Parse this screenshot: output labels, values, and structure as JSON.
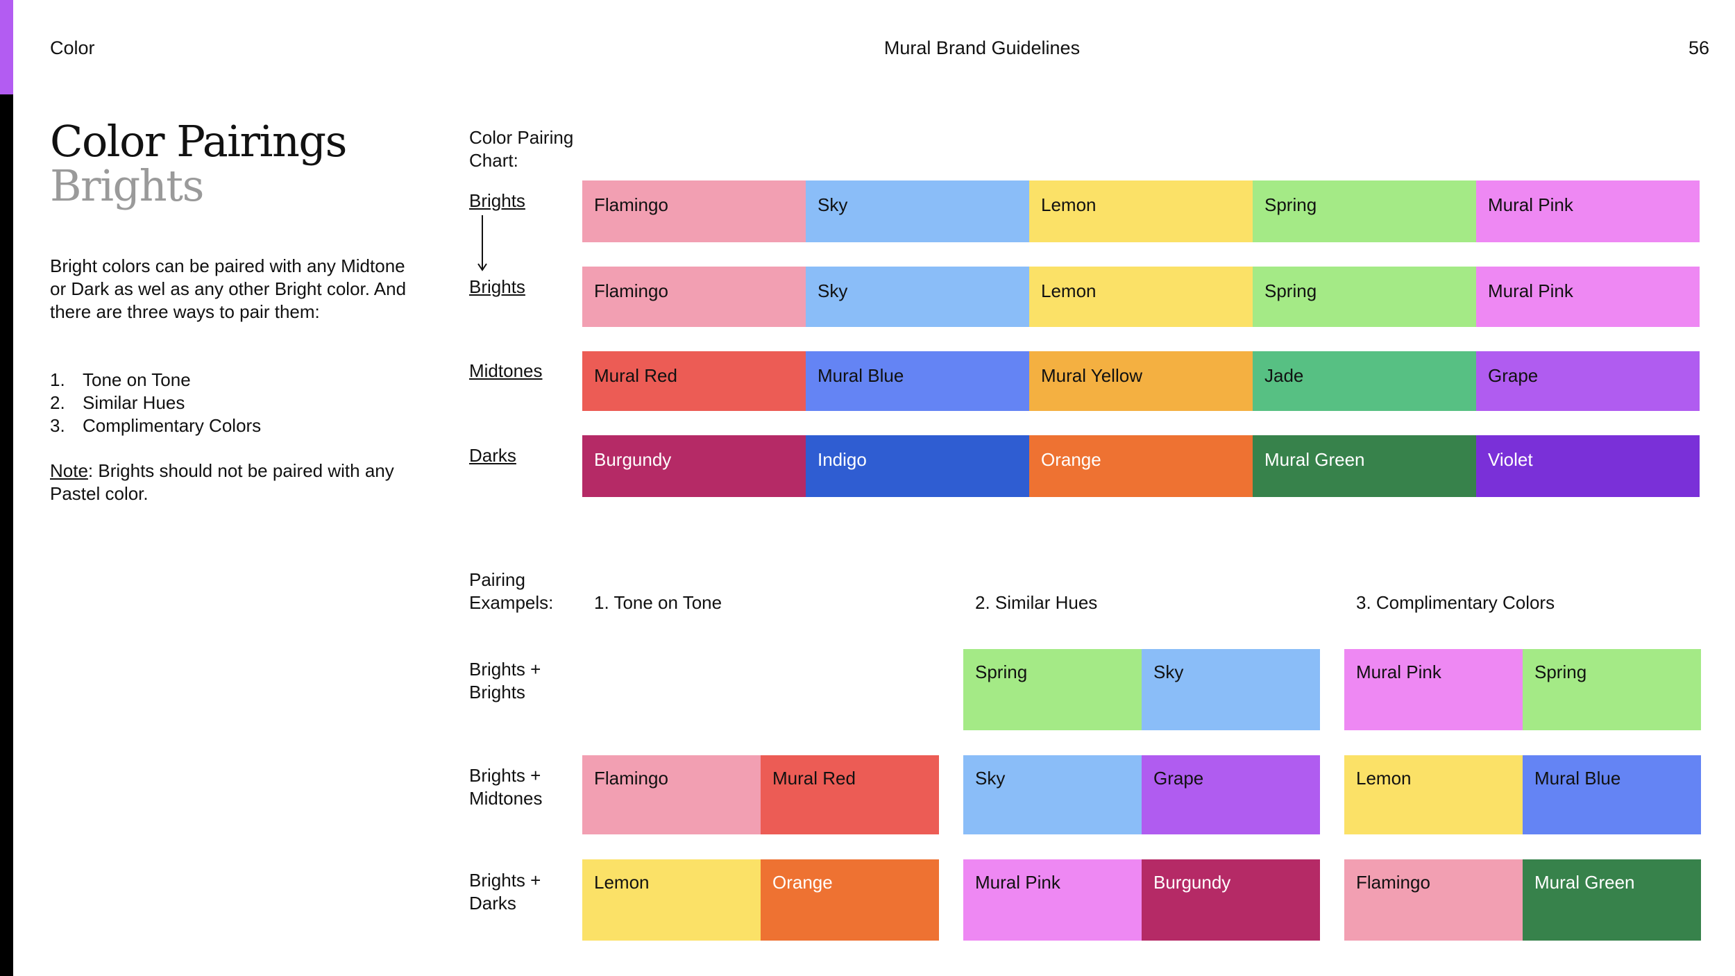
{
  "header": {
    "section": "Color",
    "doc_title": "Mural Brand Guidelines",
    "page_number": "56"
  },
  "title": "Color Pairings",
  "subtitle": "Brights",
  "intro": "Bright colors can be paired with any Midtone or Dark as wel as any other Bright color. And there are three ways to pair them:",
  "ways": [
    {
      "num": "1.",
      "text": "Tone on Tone"
    },
    {
      "num": "2.",
      "text": "Similar Hues"
    },
    {
      "num": "3.",
      "text": "Complimentary Colors"
    }
  ],
  "note": {
    "label": "Note",
    "text": ": Brights should not be paired with any Pastel color."
  },
  "chart": {
    "heading": "Color Pairing Chart:",
    "rows": [
      {
        "label": "Brights",
        "swatches": [
          {
            "name": "Flamingo",
            "color": "#f29fb2",
            "text": "#111111"
          },
          {
            "name": "Sky",
            "color": "#8abdf8",
            "text": "#111111"
          },
          {
            "name": "Lemon",
            "color": "#fbe167",
            "text": "#111111"
          },
          {
            "name": "Spring",
            "color": "#a4ea86",
            "text": "#111111"
          },
          {
            "name": "Mural Pink",
            "color": "#ee88f3",
            "text": "#111111"
          }
        ]
      },
      {
        "label": "Brights",
        "swatches": [
          {
            "name": "Flamingo",
            "color": "#f29fb2",
            "text": "#111111"
          },
          {
            "name": "Sky",
            "color": "#8abdf8",
            "text": "#111111"
          },
          {
            "name": "Lemon",
            "color": "#fbe167",
            "text": "#111111"
          },
          {
            "name": "Spring",
            "color": "#a4ea86",
            "text": "#111111"
          },
          {
            "name": "Mural Pink",
            "color": "#ee88f3",
            "text": "#111111"
          }
        ]
      },
      {
        "label": "Midtones",
        "swatches": [
          {
            "name": "Mural Red",
            "color": "#ec5c55",
            "text": "#111111"
          },
          {
            "name": "Mural Blue",
            "color": "#6484f4",
            "text": "#111111"
          },
          {
            "name": "Mural Yellow",
            "color": "#f4b041",
            "text": "#111111"
          },
          {
            "name": "Jade",
            "color": "#57c083",
            "text": "#111111"
          },
          {
            "name": "Grape",
            "color": "#b05cf0",
            "text": "#111111"
          }
        ]
      },
      {
        "label": "Darks",
        "swatches": [
          {
            "name": "Burgundy",
            "color": "#b52a66",
            "text": "#ffffff"
          },
          {
            "name": "Indigo",
            "color": "#2f5dd2",
            "text": "#ffffff"
          },
          {
            "name": "Orange",
            "color": "#ee7232",
            "text": "#ffffff"
          },
          {
            "name": "Mural Green",
            "color": "#37824b",
            "text": "#ffffff"
          },
          {
            "name": "Violet",
            "color": "#7a30d8",
            "text": "#ffffff"
          }
        ]
      }
    ]
  },
  "examples": {
    "heading": "Pairing Exampels:",
    "columns": [
      "1. Tone on Tone",
      "2. Similar Hues",
      "3. Complimentary Colors"
    ],
    "rows": [
      {
        "label": "Brights + Brights",
        "pairs": [
          null,
          [
            {
              "name": "Spring",
              "color": "#a4ea86",
              "text": "#111111"
            },
            {
              "name": "Sky",
              "color": "#8abdf8",
              "text": "#111111"
            }
          ],
          [
            {
              "name": "Mural Pink",
              "color": "#ee88f3",
              "text": "#111111"
            },
            {
              "name": "Spring",
              "color": "#a4ea86",
              "text": "#111111"
            }
          ]
        ]
      },
      {
        "label": "Brights + Midtones",
        "pairs": [
          [
            {
              "name": "Flamingo",
              "color": "#f29fb2",
              "text": "#111111"
            },
            {
              "name": "Mural Red",
              "color": "#ec5c55",
              "text": "#111111"
            }
          ],
          [
            {
              "name": "Sky",
              "color": "#8abdf8",
              "text": "#111111"
            },
            {
              "name": "Grape",
              "color": "#b05cf0",
              "text": "#111111"
            }
          ],
          [
            {
              "name": "Lemon",
              "color": "#fbe167",
              "text": "#111111"
            },
            {
              "name": "Mural Blue",
              "color": "#6484f4",
              "text": "#111111"
            }
          ]
        ]
      },
      {
        "label": "Brights + Darks",
        "pairs": [
          [
            {
              "name": "Lemon",
              "color": "#fbe167",
              "text": "#111111"
            },
            {
              "name": "Orange",
              "color": "#ee7232",
              "text": "#ffffff"
            }
          ],
          [
            {
              "name": "Mural Pink",
              "color": "#ee88f3",
              "text": "#111111"
            },
            {
              "name": "Burgundy",
              "color": "#b52a66",
              "text": "#ffffff"
            }
          ],
          [
            {
              "name": "Flamingo",
              "color": "#f29fb2",
              "text": "#111111"
            },
            {
              "name": "Mural Green",
              "color": "#37824b",
              "text": "#ffffff"
            }
          ]
        ]
      }
    ]
  }
}
